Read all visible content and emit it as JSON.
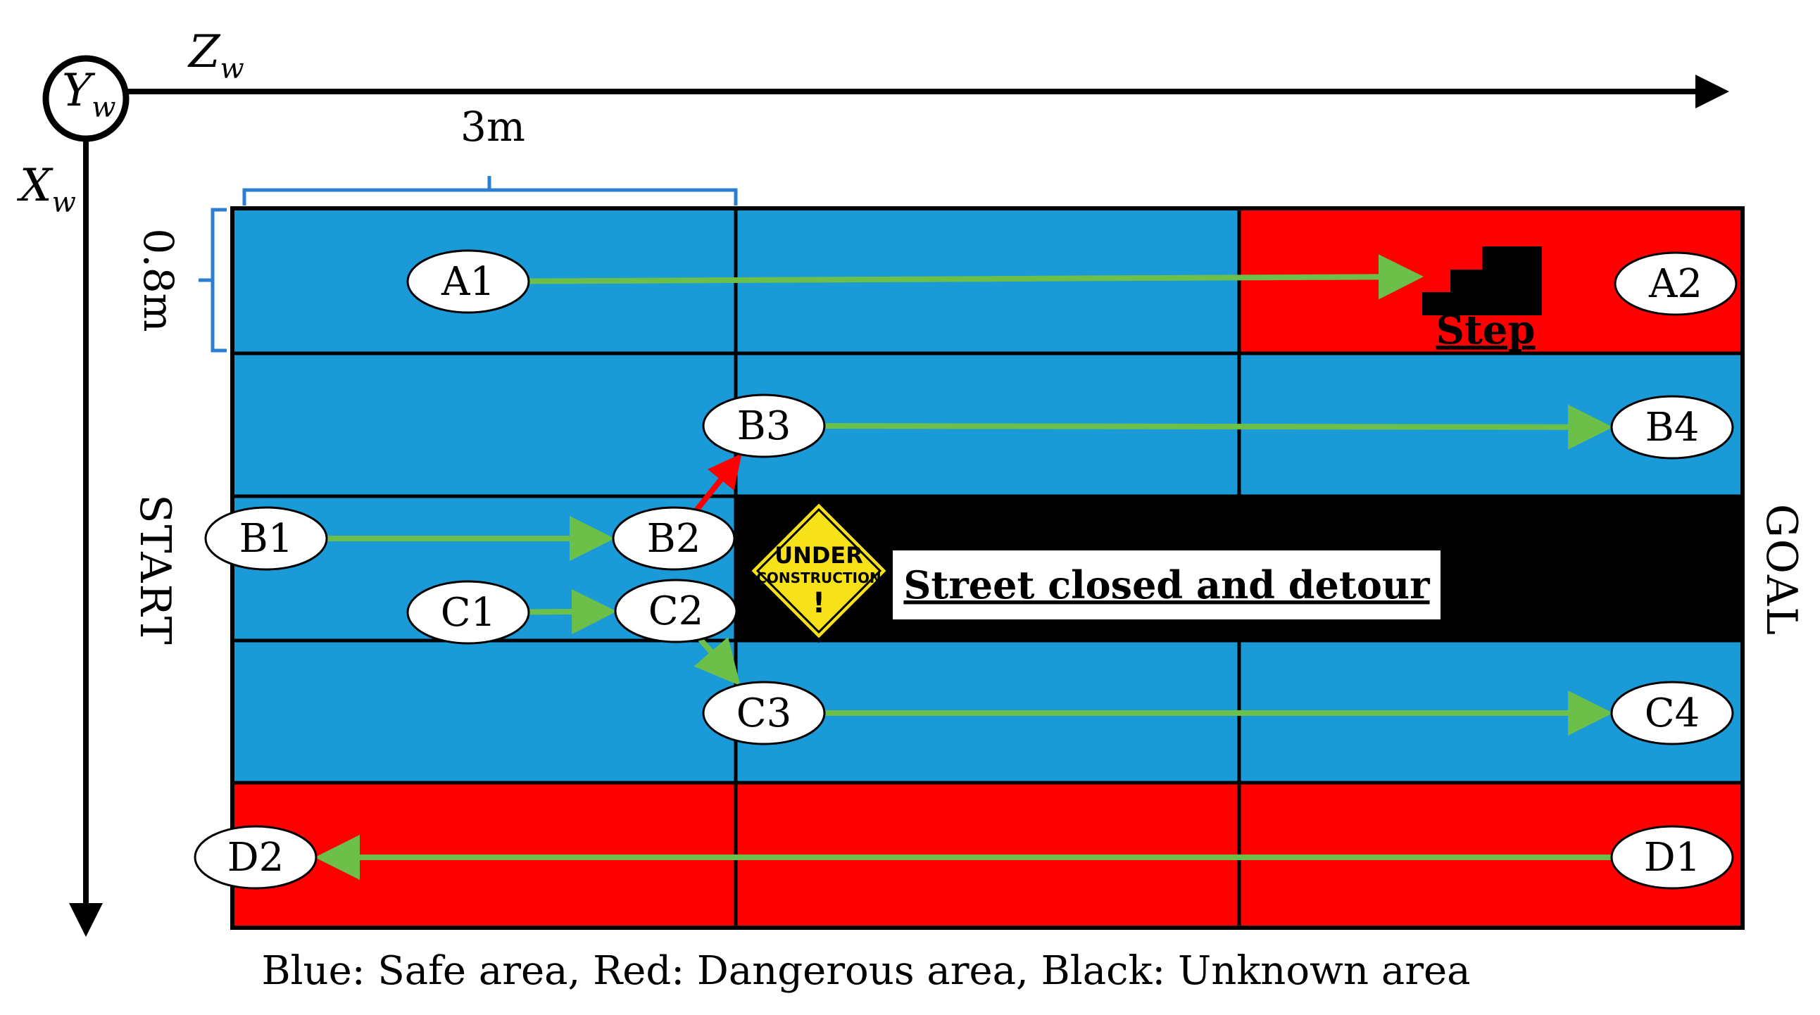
{
  "colors": {
    "safe": "#1a9ad6",
    "danger": "#ff0000",
    "unknown": "#000000",
    "path": "#6cc04a",
    "path_blocked": "#ff0000",
    "bracket": "#2b7fd0",
    "sign": "#f7e21a"
  },
  "axes": {
    "origin_label": "Y",
    "origin_sub": "w",
    "horizontal_label": "Z",
    "horizontal_sub": "w",
    "vertical_label": "X",
    "vertical_sub": "w"
  },
  "dimensions": {
    "width_label": "3m",
    "height_label": "0.8m"
  },
  "side_labels": {
    "start": "START",
    "goal": "GOAL"
  },
  "grid": {
    "rows": [
      [
        "safe",
        "safe",
        "danger"
      ],
      [
        "safe",
        "safe",
        "safe"
      ],
      [
        "safe",
        "unknown",
        "unknown"
      ],
      [
        "safe",
        "safe",
        "safe"
      ],
      [
        "danger",
        "danger",
        "danger"
      ]
    ]
  },
  "nodes": [
    {
      "id": "A1",
      "label": "A1"
    },
    {
      "id": "A2",
      "label": "A2"
    },
    {
      "id": "B1",
      "label": "B1"
    },
    {
      "id": "B2",
      "label": "B2"
    },
    {
      "id": "B3",
      "label": "B3"
    },
    {
      "id": "B4",
      "label": "B4"
    },
    {
      "id": "C1",
      "label": "C1"
    },
    {
      "id": "C2",
      "label": "C2"
    },
    {
      "id": "C3",
      "label": "C3"
    },
    {
      "id": "C4",
      "label": "C4"
    },
    {
      "id": "D1",
      "label": "D1"
    },
    {
      "id": "D2",
      "label": "D2"
    }
  ],
  "paths": [
    {
      "from": "A1",
      "to": "step",
      "status": "ok"
    },
    {
      "from": "B1",
      "to": "B2",
      "status": "ok"
    },
    {
      "from": "B2",
      "to": "B3",
      "status": "blocked"
    },
    {
      "from": "B3",
      "to": "B4",
      "status": "ok"
    },
    {
      "from": "C1",
      "to": "C2",
      "status": "ok"
    },
    {
      "from": "C2",
      "to": "C3",
      "status": "ok"
    },
    {
      "from": "C3",
      "to": "C4",
      "status": "ok"
    },
    {
      "from": "D1",
      "to": "D2",
      "status": "ok"
    }
  ],
  "obstacles": {
    "step_label": "Step",
    "sign_line1": "UNDER",
    "sign_line2": "CONSTRUCTION",
    "sign_mark": "!",
    "closed_label": "Street closed and detour"
  },
  "caption": "Blue: Safe area, Red: Dangerous area, Black: Unknown area"
}
